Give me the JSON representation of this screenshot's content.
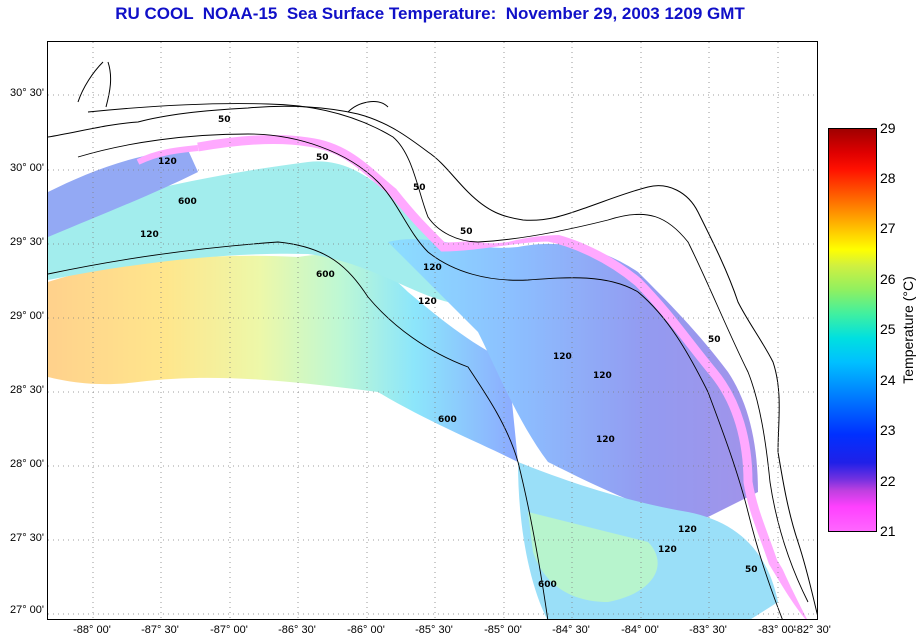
{
  "title": "RU COOL  NOAA-15  Sea Surface Temperature:  November 29, 2003 1209 GMT",
  "latitude_labels": [
    "30° 30'",
    "30° 00'",
    "29° 30'",
    "29° 00'",
    "28° 30'",
    "28° 00'",
    "27° 30'",
    "27° 00'"
  ],
  "longitude_labels": [
    "-88° 00'",
    "-87° 30'",
    "-87° 00'",
    "-86° 30'",
    "-86° 00'",
    "-85° 30'",
    "-85° 00'",
    "-84° 30'",
    "-84° 00'",
    "-83° 30'",
    "-83° 00'",
    "-82° 30'"
  ],
  "colorbar": {
    "label": "Temperature (°C)",
    "ticks": [
      "29",
      "28",
      "27",
      "26",
      "25",
      "24",
      "23",
      "22",
      "21"
    ],
    "min": 21,
    "max": 29
  },
  "isobath_labels": [
    "50",
    "120",
    "600",
    "120",
    "600",
    "50",
    "120",
    "50",
    "120",
    "50",
    "120",
    "600",
    "120",
    "120",
    "120",
    "50",
    "600",
    "120",
    "50"
  ],
  "colors": {
    "title": "#1010c8",
    "grid": "#888888",
    "coast": "#000000"
  }
}
